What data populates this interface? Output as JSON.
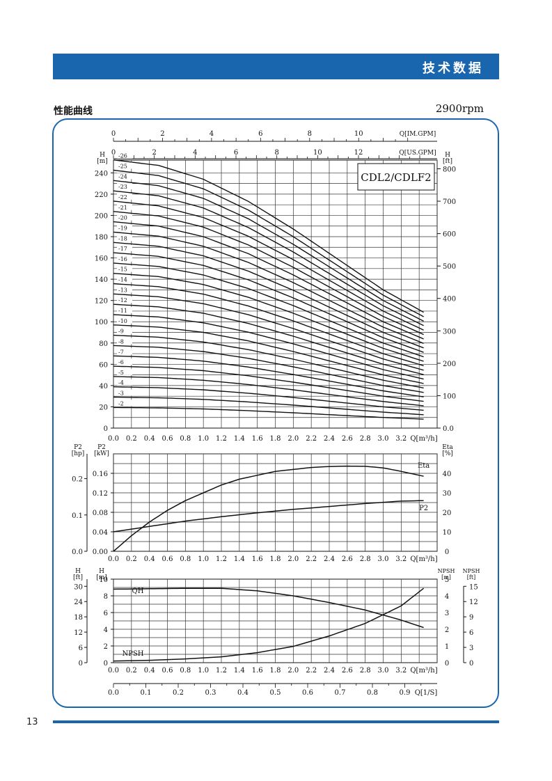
{
  "header": {
    "title": "技术数据"
  },
  "section": {
    "title": "性能曲线",
    "speed": "2900rpm"
  },
  "page_number": "13",
  "colors": {
    "accent": "#1a66ae",
    "line": "#111111",
    "grid": "#333333"
  },
  "chart_data": [
    {
      "type": "line",
      "title": "CDL2/CDLF2",
      "xlabel": "Q[m³/h]",
      "xticks": [
        "0.0",
        "0.2",
        "0.4",
        "0.6",
        "0.8",
        "1.0",
        "1.2",
        "1.4",
        "1.6",
        "1.8",
        "2.0",
        "2.2",
        "2.4",
        "2.6",
        "2.8",
        "3.0",
        "3.2"
      ],
      "xlim": [
        0,
        3.6
      ],
      "top_axis_imgpm": {
        "label": "Q[IM.GPM]",
        "ticks": [
          "0",
          "2",
          "4",
          "6",
          "8",
          "10"
        ]
      },
      "top_axis_usgpm": {
        "label": "Q[US.GPM]",
        "ticks": [
          "0",
          "2",
          "4",
          "6",
          "8",
          "10",
          "12"
        ]
      },
      "ylabel_left": "H\n[m]",
      "ylabel_right": "H\n[ft]",
      "yticks_m": [
        "0",
        "20",
        "40",
        "60",
        "80",
        "100",
        "120",
        "140",
        "160",
        "180",
        "200",
        "220",
        "240"
      ],
      "yticks_ft": [
        "0.0",
        "100",
        "200",
        "300",
        "400",
        "500",
        "600",
        "700",
        "800"
      ],
      "ylim": [
        0,
        252
      ],
      "grid": true,
      "stage_labels": [
        "-26",
        "-25",
        "-24",
        "-23",
        "-22",
        "-21",
        "-20",
        "-19",
        "-18",
        "-17",
        "-16",
        "-15",
        "-14",
        "-13",
        "-12",
        "-11",
        "-10",
        "-9",
        "-8",
        "-7",
        "-6",
        "-5",
        "-4",
        "-3",
        "-2"
      ],
      "stages": [
        2,
        3,
        4,
        5,
        6,
        7,
        8,
        9,
        10,
        11,
        12,
        13,
        14,
        15,
        16,
        17,
        18,
        19,
        20,
        21,
        22,
        23,
        24,
        25,
        26
      ],
      "head_per_stage_curve": {
        "q": [
          0.0,
          0.5,
          1.0,
          1.5,
          2.0,
          2.5,
          3.0,
          3.5
        ],
        "h": [
          9.7,
          9.5,
          9.0,
          8.2,
          7.2,
          6.1,
          5.0,
          4.1
        ]
      }
    },
    {
      "type": "line",
      "xlabel": "Q[m³/h]",
      "xticks": [
        "0.0",
        "0.2",
        "0.4",
        "0.6",
        "0.8",
        "1.0",
        "1.2",
        "1.4",
        "1.6",
        "1.8",
        "2.0",
        "2.2",
        "2.4",
        "2.6",
        "2.8",
        "3.0",
        "3.2"
      ],
      "xlim": [
        0,
        3.6
      ],
      "ylabel_hp": "P2\n[hp]",
      "ylabel_kw": "P2\n[kW]",
      "ylabel_right": "Eta\n[%]",
      "yticks_hp": [
        "0.0",
        "0.1",
        "0.2"
      ],
      "yticks_kw": [
        "0.00",
        "0.04",
        "0.08",
        "0.12",
        "0.16"
      ],
      "yticks_eta": [
        "0",
        "10",
        "20",
        "30",
        "40"
      ],
      "ylim_kw": [
        0,
        0.2
      ],
      "grid": true,
      "series": [
        {
          "name": "Eta",
          "unit": "%",
          "x": [
            0.0,
            0.2,
            0.4,
            0.6,
            0.8,
            1.0,
            1.2,
            1.4,
            1.6,
            1.8,
            2.0,
            2.2,
            2.4,
            2.6,
            2.8,
            3.0,
            3.2,
            3.45
          ],
          "y": [
            0,
            8,
            15,
            21,
            26,
            30,
            34,
            37,
            39,
            41,
            42,
            43,
            43.5,
            43.7,
            43.6,
            42.8,
            41,
            38.5
          ]
        },
        {
          "name": "P2",
          "unit": "kW",
          "x": [
            0.0,
            0.4,
            0.8,
            1.2,
            1.6,
            2.0,
            2.4,
            2.8,
            3.2,
            3.45
          ],
          "y": [
            0.04,
            0.051,
            0.062,
            0.071,
            0.079,
            0.086,
            0.092,
            0.098,
            0.103,
            0.104
          ]
        }
      ]
    },
    {
      "type": "line",
      "xlabel": "Q[m³/h]",
      "xticks": [
        "0.0",
        "0.2",
        "0.4",
        "0.6",
        "0.8",
        "1.0",
        "1.2",
        "1.4",
        "1.6",
        "1.8",
        "2.0",
        "2.2",
        "2.4",
        "2.6",
        "2.8",
        "3.0",
        "3.2"
      ],
      "xlim": [
        0,
        3.6
      ],
      "ylabel_ft": "H\n[ft]",
      "ylabel_m": "H\n[m]",
      "ylabel_npsh_m": "NPSH\n[m]",
      "ylabel_npsh_ft": "NPSH\n[ft]",
      "yticks_ft": [
        "0",
        "6",
        "12",
        "18",
        "24",
        "30"
      ],
      "yticks_m": [
        "0",
        "2",
        "4",
        "6",
        "8",
        "10"
      ],
      "yticks_npsh_m": [
        "0",
        "1",
        "2",
        "3",
        "4",
        "5"
      ],
      "yticks_npsh_ft": [
        "0",
        "3",
        "6",
        "9",
        "12",
        "15"
      ],
      "ylim_m": [
        0,
        10
      ],
      "grid": true,
      "series": [
        {
          "name": "QH",
          "unit": "m",
          "x": [
            0.0,
            0.4,
            0.8,
            1.2,
            1.6,
            2.0,
            2.4,
            2.8,
            3.2,
            3.45
          ],
          "y": [
            8.8,
            8.85,
            8.9,
            8.9,
            8.6,
            8.0,
            7.2,
            6.3,
            5.1,
            4.2
          ]
        },
        {
          "name": "NPSH",
          "unit": "m",
          "x": [
            0.0,
            0.4,
            0.8,
            1.2,
            1.6,
            2.0,
            2.4,
            2.8,
            3.2,
            3.45
          ],
          "y": [
            0.2,
            0.28,
            0.45,
            0.7,
            1.2,
            1.95,
            3.2,
            4.7,
            6.8,
            8.9
          ]
        }
      ],
      "second_axis": {
        "label": "Q[1/S]",
        "ticks": [
          "0.0",
          "0.1",
          "0.2",
          "0.3",
          "0.4",
          "0.5",
          "0.6",
          "0.7",
          "0.8",
          "0.9"
        ]
      }
    }
  ]
}
